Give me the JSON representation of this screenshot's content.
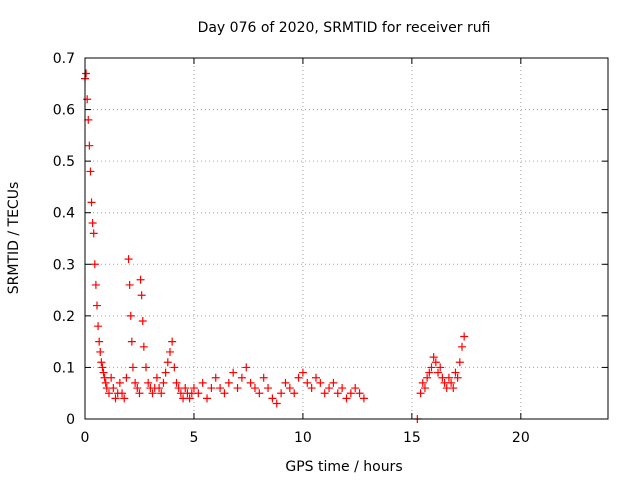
{
  "chart_data": {
    "type": "scatter",
    "title": "Day 076 of 2020, SRMTID for receiver rufi",
    "xlabel": "GPS time / hours",
    "ylabel": "SRMTID / TECUs",
    "xlim": [
      0,
      24
    ],
    "ylim": [
      0,
      0.7
    ],
    "xticks": [
      0,
      5,
      10,
      15,
      20
    ],
    "yticks": [
      0,
      0.1,
      0.2,
      0.3,
      0.4,
      0.5,
      0.6,
      0.7
    ],
    "grid": true,
    "marker": "+",
    "color": "#ff0000",
    "series": [
      {
        "name": "SRMTID",
        "x": [
          0.0,
          0.05,
          0.1,
          0.15,
          0.2,
          0.25,
          0.3,
          0.35,
          0.4,
          0.45,
          0.5,
          0.55,
          0.6,
          0.65,
          0.7,
          0.75,
          0.8,
          0.85,
          0.9,
          0.95,
          1.0,
          1.1,
          1.2,
          1.3,
          1.4,
          1.5,
          1.6,
          1.7,
          1.8,
          1.9,
          2.0,
          2.05,
          2.1,
          2.15,
          2.2,
          2.3,
          2.4,
          2.5,
          2.55,
          2.6,
          2.65,
          2.7,
          2.8,
          2.9,
          3.0,
          3.1,
          3.2,
          3.3,
          3.4,
          3.5,
          3.6,
          3.7,
          3.8,
          3.9,
          4.0,
          4.1,
          4.2,
          4.3,
          4.4,
          4.5,
          4.6,
          4.7,
          4.8,
          4.9,
          5.0,
          5.2,
          5.4,
          5.6,
          5.8,
          6.0,
          6.2,
          6.4,
          6.6,
          6.8,
          7.0,
          7.2,
          7.4,
          7.6,
          7.8,
          8.0,
          8.2,
          8.4,
          8.6,
          8.8,
          9.0,
          9.2,
          9.4,
          9.6,
          9.8,
          10.0,
          10.2,
          10.4,
          10.6,
          10.8,
          11.0,
          11.2,
          11.4,
          11.6,
          11.8,
          12.0,
          12.2,
          12.4,
          12.6,
          12.8,
          15.25,
          15.4,
          15.5,
          15.6,
          15.7,
          15.8,
          15.9,
          16.0,
          16.1,
          16.2,
          16.3,
          16.4,
          16.5,
          16.6,
          16.7,
          16.8,
          16.9,
          17.0,
          17.1,
          17.2,
          17.3,
          17.4
        ],
        "y": [
          0.66,
          0.67,
          0.62,
          0.58,
          0.53,
          0.48,
          0.42,
          0.38,
          0.36,
          0.3,
          0.26,
          0.22,
          0.18,
          0.15,
          0.13,
          0.11,
          0.1,
          0.09,
          0.08,
          0.07,
          0.06,
          0.05,
          0.08,
          0.06,
          0.04,
          0.05,
          0.07,
          0.05,
          0.04,
          0.08,
          0.31,
          0.26,
          0.2,
          0.15,
          0.1,
          0.07,
          0.06,
          0.05,
          0.27,
          0.24,
          0.19,
          0.14,
          0.1,
          0.07,
          0.06,
          0.05,
          0.06,
          0.08,
          0.06,
          0.05,
          0.07,
          0.09,
          0.11,
          0.13,
          0.15,
          0.1,
          0.07,
          0.06,
          0.05,
          0.04,
          0.06,
          0.05,
          0.04,
          0.05,
          0.06,
          0.05,
          0.07,
          0.04,
          0.06,
          0.08,
          0.06,
          0.05,
          0.07,
          0.09,
          0.06,
          0.08,
          0.1,
          0.07,
          0.06,
          0.05,
          0.08,
          0.06,
          0.04,
          0.03,
          0.05,
          0.07,
          0.06,
          0.05,
          0.08,
          0.09,
          0.07,
          0.06,
          0.08,
          0.07,
          0.05,
          0.06,
          0.07,
          0.05,
          0.06,
          0.04,
          0.05,
          0.06,
          0.05,
          0.04,
          0.0,
          0.05,
          0.07,
          0.06,
          0.08,
          0.09,
          0.1,
          0.12,
          0.11,
          0.09,
          0.1,
          0.08,
          0.07,
          0.06,
          0.08,
          0.07,
          0.06,
          0.09,
          0.08,
          0.11,
          0.14,
          0.16
        ]
      }
    ]
  }
}
